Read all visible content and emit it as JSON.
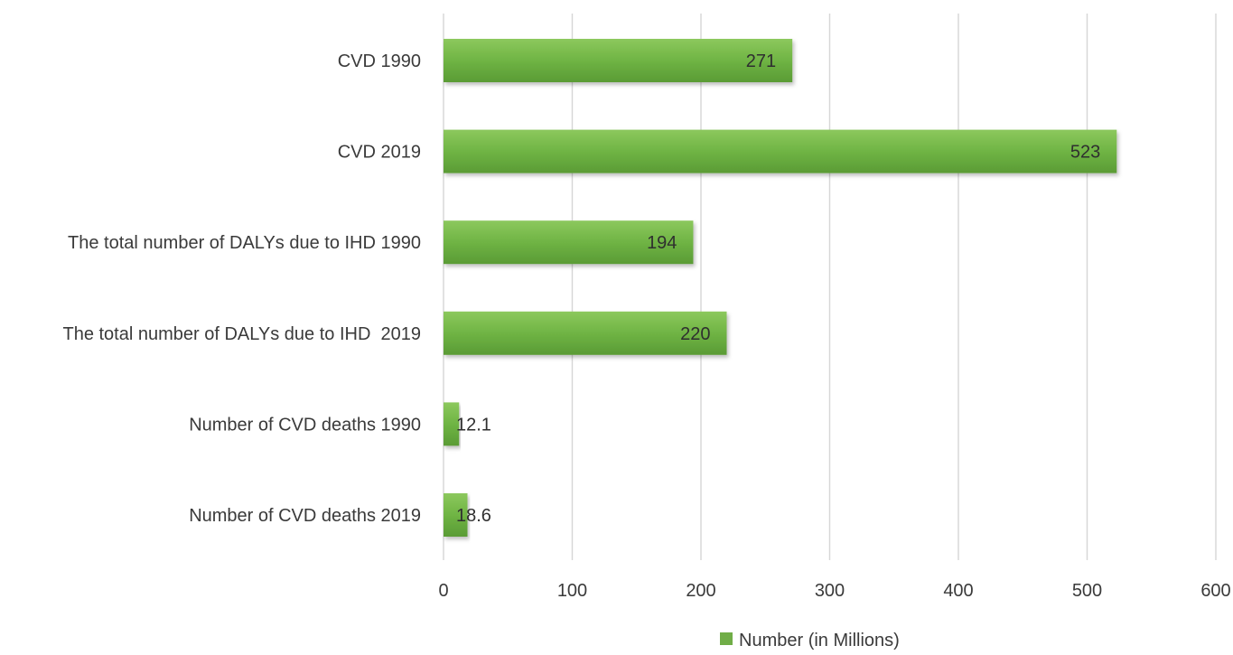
{
  "chart_data": {
    "type": "bar",
    "orientation": "horizontal",
    "categories": [
      "CVD 1990",
      "CVD 2019",
      "The total number of DALYs due to IHD 1990",
      "The total number of DALYs due to IHD  2019",
      "Number of CVD deaths 1990",
      "Number of CVD deaths 2019"
    ],
    "series": [
      {
        "name": "Number (in Millions)",
        "values": [
          271,
          523,
          194,
          220,
          12.1,
          18.6
        ],
        "data_labels": [
          "271",
          "523",
          "194",
          "220",
          "12.1",
          "18.6"
        ],
        "color": "#70ad47"
      }
    ],
    "xlim": [
      0,
      600
    ],
    "x_ticks": [
      0,
      100,
      200,
      300,
      400,
      500,
      600
    ],
    "x_tick_labels": [
      "0",
      "100",
      "200",
      "300",
      "400",
      "500",
      "600"
    ],
    "grid": "vertical",
    "legend": {
      "position": "bottom",
      "entries": [
        "Number (in Millions)"
      ]
    },
    "title": "",
    "xlabel": "",
    "ylabel": ""
  }
}
